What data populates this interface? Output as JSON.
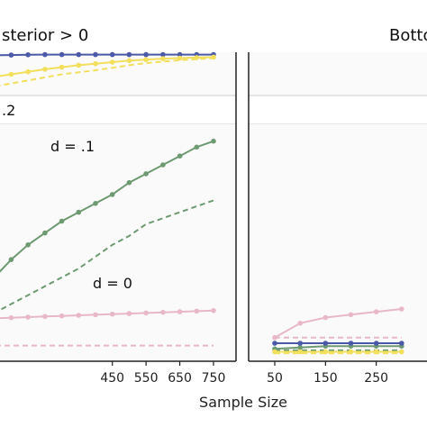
{
  "chart_data": {
    "type": "line",
    "xlabel": "Sample Size",
    "panels": [
      {
        "title": "Posterior > 0",
        "title_visible": "sterior > 0",
        "strips": [
          {
            "label": ".2",
            "series": [
              {
                "name": "solid-blue",
                "color": "#4a5aa8",
                "style": "solid",
                "points": true,
                "x": [
                  50,
                  100,
                  150,
                  200,
                  250,
                  300,
                  350,
                  400,
                  450,
                  500,
                  550,
                  600,
                  650,
                  700,
                  750
                ],
                "y": [
                  0.97,
                  0.975,
                  0.98,
                  0.985,
                  0.99,
                  0.99,
                  0.99,
                  0.99,
                  0.99,
                  0.99,
                  0.99,
                  0.99,
                  0.99,
                  0.99,
                  0.99
                ]
              },
              {
                "name": "solid-yellow",
                "color": "#f2df5c",
                "style": "solid",
                "points": true,
                "x": [
                  50,
                  100,
                  150,
                  200,
                  250,
                  300,
                  350,
                  400,
                  450,
                  500,
                  550,
                  600,
                  650,
                  700,
                  750
                ],
                "y": [
                  0.5,
                  0.55,
                  0.6,
                  0.65,
                  0.7,
                  0.74,
                  0.78,
                  0.81,
                  0.84,
                  0.87,
                  0.89,
                  0.91,
                  0.92,
                  0.93,
                  0.94
                ]
              },
              {
                "name": "dashed-yellow",
                "color": "#f2df5c",
                "style": "dashed",
                "points": false,
                "x": [
                  50,
                  100,
                  150,
                  200,
                  250,
                  300,
                  350,
                  400,
                  450,
                  500,
                  550,
                  600,
                  650,
                  700,
                  750
                ],
                "y": [
                  0.3,
                  0.36,
                  0.42,
                  0.48,
                  0.54,
                  0.6,
                  0.64,
                  0.68,
                  0.73,
                  0.78,
                  0.82,
                  0.85,
                  0.88,
                  0.9,
                  0.92
                ]
              }
            ]
          },
          {
            "label": ".2",
            "annotations": [
              "d = .1",
              "d = 0"
            ],
            "series": [
              {
                "name": "solid-green",
                "color": "#6e9a72",
                "style": "solid",
                "points": true,
                "x": [
                  50,
                  100,
                  150,
                  200,
                  250,
                  300,
                  350,
                  400,
                  450,
                  500,
                  550,
                  600,
                  650,
                  700,
                  750
                ],
                "y": [
                  0.17,
                  0.23,
                  0.29,
                  0.34,
                  0.38,
                  0.42,
                  0.45,
                  0.48,
                  0.51,
                  0.55,
                  0.58,
                  0.61,
                  0.64,
                  0.67,
                  0.69
                ]
              },
              {
                "name": "dashed-green",
                "color": "#6e9a72",
                "style": "dashed",
                "points": false,
                "x": [
                  50,
                  100,
                  150,
                  200,
                  250,
                  300,
                  350,
                  400,
                  450,
                  500,
                  550,
                  600,
                  650,
                  700,
                  750
                ],
                "y": [
                  0.08,
                  0.11,
                  0.14,
                  0.17,
                  0.2,
                  0.23,
                  0.26,
                  0.3,
                  0.34,
                  0.37,
                  0.41,
                  0.43,
                  0.45,
                  0.47,
                  0.49
                ]
              },
              {
                "name": "solid-pink",
                "color": "#e8b7c8",
                "style": "solid",
                "points": true,
                "x": [
                  50,
                  100,
                  150,
                  200,
                  250,
                  300,
                  350,
                  400,
                  450,
                  500,
                  550,
                  600,
                  650,
                  700,
                  750
                ],
                "y": [
                  0.09,
                  0.092,
                  0.094,
                  0.096,
                  0.098,
                  0.1,
                  0.102,
                  0.104,
                  0.106,
                  0.108,
                  0.11,
                  0.112,
                  0.114,
                  0.116,
                  0.118
                ]
              },
              {
                "name": "dashed-pink",
                "color": "#e8b7c8",
                "style": "dashed",
                "points": false,
                "x": [
                  50,
                  100,
                  150,
                  200,
                  250,
                  300,
                  350,
                  400,
                  450,
                  500,
                  550,
                  600,
                  650,
                  700,
                  750
                ],
                "y": [
                  0.0,
                  0.0,
                  0.0,
                  0.0,
                  0.0,
                  0.0,
                  0.0,
                  0.0,
                  0.0,
                  0.0,
                  0.0,
                  0.0,
                  0.0,
                  0.0,
                  0.0
                ]
              }
            ]
          }
        ],
        "x_ticks_visible": [
          "450",
          "550",
          "650",
          "750"
        ],
        "xlim": [
          50,
          750
        ]
      },
      {
        "title": "Bottom",
        "title_visible": "Botto",
        "strips": [
          {
            "label": "",
            "series": []
          },
          {
            "label": "",
            "series": [
              {
                "name": "solid-pink",
                "color": "#e8b7c8",
                "style": "solid",
                "points": true,
                "x": [
                  50,
                  100,
                  150,
                  200,
                  250,
                  300
                ],
                "y": [
                  0.0,
                  0.05,
                  0.07,
                  0.08,
                  0.09,
                  0.1
                ]
              },
              {
                "name": "dashed-pink",
                "color": "#e8b7c8",
                "style": "dashed",
                "points": false,
                "x": [
                  50,
                  100,
                  150,
                  200,
                  250,
                  300
                ],
                "y": [
                  0.0,
                  0.0,
                  0.0,
                  0.0,
                  0.0,
                  0.0
                ]
              },
              {
                "name": "solid-green",
                "color": "#6e9a72",
                "style": "solid",
                "points": true,
                "x": [
                  50,
                  100,
                  150,
                  200,
                  250,
                  300
                ],
                "y": [
                  -0.04,
                  -0.035,
                  -0.03,
                  -0.03,
                  -0.03,
                  -0.03
                ]
              },
              {
                "name": "solid-blue",
                "color": "#4a5aa8",
                "style": "solid",
                "points": true,
                "x": [
                  50,
                  100,
                  150,
                  200,
                  250,
                  300
                ],
                "y": [
                  -0.02,
                  -0.02,
                  -0.02,
                  -0.02,
                  -0.02,
                  -0.02
                ]
              },
              {
                "name": "dashed-green",
                "color": "#6e9a72",
                "style": "dashed",
                "points": false,
                "x": [
                  50,
                  100,
                  150,
                  200,
                  250,
                  300
                ],
                "y": [
                  -0.045,
                  -0.045,
                  -0.045,
                  -0.045,
                  -0.045,
                  -0.045
                ]
              },
              {
                "name": "solid-yellow",
                "color": "#f2df5c",
                "style": "solid",
                "points": true,
                "x": [
                  50,
                  100,
                  150,
                  200,
                  250,
                  300
                ],
                "y": [
                  -0.05,
                  -0.05,
                  -0.05,
                  -0.05,
                  -0.05,
                  -0.05
                ]
              },
              {
                "name": "dashed-yellow",
                "color": "#f2df5c",
                "style": "dashed",
                "points": false,
                "x": [
                  50,
                  100,
                  150,
                  200,
                  250,
                  300
                ],
                "y": [
                  -0.055,
                  -0.055,
                  -0.055,
                  -0.055,
                  -0.055,
                  -0.055
                ]
              }
            ]
          }
        ],
        "x_ticks_visible": [
          "50",
          "150",
          "250"
        ],
        "xlim": [
          50,
          350
        ]
      }
    ],
    "grid": false,
    "legend": "none"
  }
}
